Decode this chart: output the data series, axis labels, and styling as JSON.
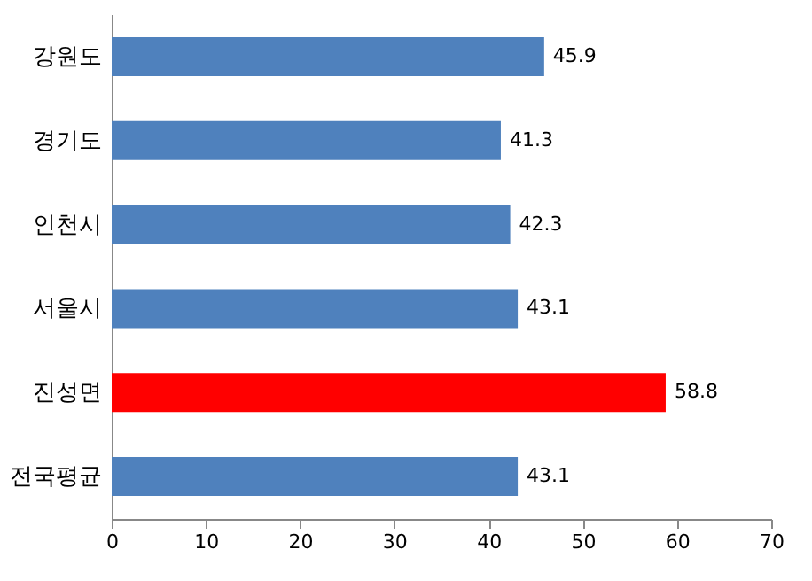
{
  "chart_data": {
    "type": "bar",
    "orientation": "horizontal",
    "categories": [
      "강원도",
      "경기도",
      "인천시",
      "서울시",
      "진성면",
      "전국평균"
    ],
    "values": [
      45.9,
      41.3,
      42.3,
      43.1,
      58.8,
      43.1
    ],
    "colors": [
      "#4f81bd",
      "#4f81bd",
      "#4f81bd",
      "#4f81bd",
      "#ff0000",
      "#4f81bd"
    ],
    "xlim": [
      0,
      70
    ],
    "xticks": [
      0,
      10,
      20,
      30,
      40,
      50,
      60,
      70
    ],
    "grid": false,
    "data_labels": true
  }
}
